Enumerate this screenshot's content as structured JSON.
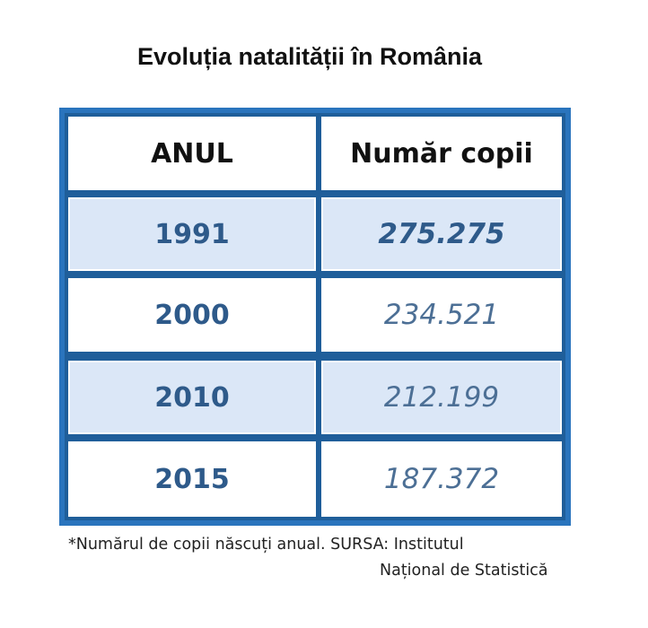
{
  "title": "Evoluția natalității în România",
  "chart_data": {
    "type": "table",
    "columns": [
      "ANUL",
      "Număr copii"
    ],
    "rows": [
      {
        "year": "1991",
        "value": "275.275"
      },
      {
        "year": "2000",
        "value": "234.521"
      },
      {
        "year": "2010",
        "value": "212.199"
      },
      {
        "year": "2015",
        "value": "187.372"
      }
    ]
  },
  "footnote": {
    "line1": "*Numărul de copii născuți anual. SURSA: Institutul",
    "line2": "Național de Statistică"
  },
  "colors": {
    "frame": "#2a74bd",
    "row_highlight": "#dbe7f7",
    "text_blue": "#2e5a8a"
  }
}
